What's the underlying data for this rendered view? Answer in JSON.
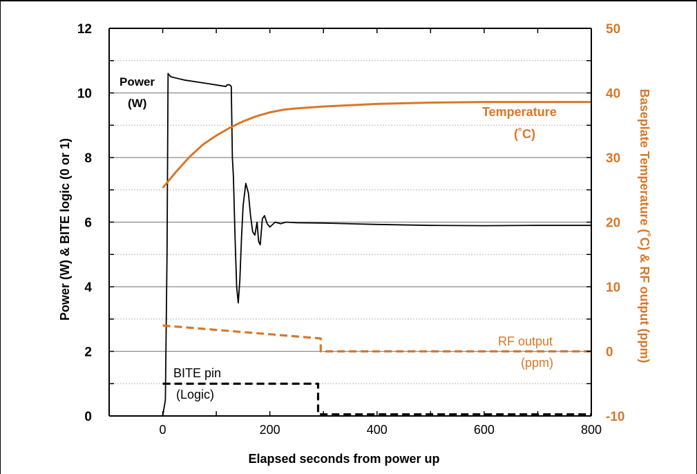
{
  "colors": {
    "accent": "#D87728",
    "ink": "#000000",
    "grid": "#888888"
  },
  "chart_data": {
    "type": "line",
    "title": "",
    "xlabel": "Elapsed seconds from power up",
    "ylabel_left": "Power (W) & BITE logic  (0 or 1)",
    "ylabel_right": "Baseplate Temperature (˚C) & RF output (ppm)",
    "xlim": [
      -100,
      800
    ],
    "ylim_left": [
      0,
      12
    ],
    "ylim_right": [
      -10,
      50
    ],
    "x_ticks": [
      "0",
      "200",
      "400",
      "600",
      "800"
    ],
    "y_ticks_left": [
      "0",
      "2",
      "4",
      "6",
      "8",
      "10",
      "12"
    ],
    "y_ticks_right": [
      "-10",
      "0",
      "10",
      "20",
      "30",
      "40",
      "50"
    ],
    "grid": true,
    "annotations": {
      "power": [
        "Power",
        "(W)"
      ],
      "temperature": [
        "Temperature",
        "(˚C)"
      ],
      "rf": [
        "RF output",
        "(ppm)"
      ],
      "bite": [
        "BITE pin",
        "(Logic)"
      ]
    },
    "series": [
      {
        "name": "Power (W)",
        "axis": "left",
        "color": "#000000",
        "style": "solid",
        "x": [
          0,
          5,
          8,
          10,
          15,
          40,
          80,
          118,
          120,
          125,
          128,
          130,
          132,
          135,
          138,
          141,
          144,
          147,
          150,
          155,
          160,
          164,
          168,
          172,
          176,
          179,
          182,
          186,
          190,
          195,
          200,
          210,
          220,
          230,
          250,
          300,
          400,
          500,
          600,
          700,
          800
        ],
        "y": [
          0,
          0.5,
          5,
          10.6,
          10.5,
          10.4,
          10.3,
          10.2,
          10.25,
          10.25,
          10.2,
          8,
          7.4,
          5.5,
          4,
          3.5,
          4.2,
          5.5,
          6.5,
          7.2,
          6.9,
          6.2,
          5.7,
          5.6,
          6.0,
          5.4,
          5.3,
          6.1,
          6.2,
          5.95,
          5.85,
          6.0,
          5.95,
          6.0,
          5.98,
          5.97,
          5.93,
          5.9,
          5.89,
          5.9,
          5.9
        ]
      },
      {
        "name": "Temperature (˚C)",
        "axis": "right",
        "color": "#D87728",
        "style": "solid",
        "x": [
          0,
          25,
          50,
          75,
          100,
          125,
          150,
          175,
          200,
          225,
          250,
          300,
          350,
          400,
          500,
          600,
          700,
          800
        ],
        "y": [
          25.3,
          27.8,
          30.1,
          32,
          33.4,
          34.6,
          35.6,
          36.4,
          37,
          37.4,
          37.6,
          37.9,
          38.1,
          38.3,
          38.5,
          38.6,
          38.6,
          38.6
        ]
      },
      {
        "name": "RF output (ppm)",
        "axis": "right",
        "color": "#D87728",
        "style": "dashed",
        "x": [
          0,
          295,
          295,
          300,
          800
        ],
        "y": [
          4,
          2,
          0,
          0,
          0
        ]
      },
      {
        "name": "BITE pin (Logic)",
        "axis": "left",
        "color": "#000000",
        "style": "dashed",
        "x": [
          0,
          290,
          290,
          800
        ],
        "y": [
          1,
          1,
          0.05,
          0.05
        ]
      }
    ]
  }
}
